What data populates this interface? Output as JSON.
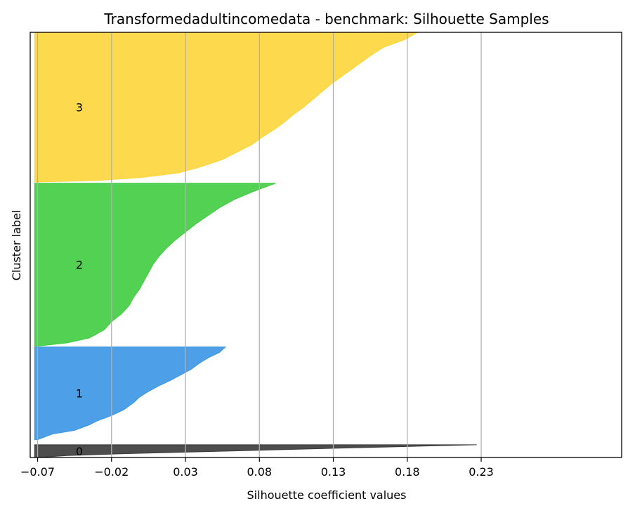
{
  "chart_data": {
    "type": "area",
    "title": "Transformedadultincomedata - benchmark: Silhouette Samples",
    "xlabel": "Silhouette coefficient values",
    "ylabel": "Cluster label",
    "xlim": [
      -0.075,
      0.325
    ],
    "x_ticks": [
      -0.07,
      -0.02,
      0.03,
      0.08,
      0.13,
      0.18,
      0.23
    ],
    "x_tick_labels": [
      "−0.07",
      "−0.02",
      "0.03",
      "0.08",
      "0.13",
      "0.18",
      "0.23"
    ],
    "ylim": [
      0,
      1000
    ],
    "grid": "x",
    "baseline": -0.072,
    "clusters": [
      {
        "label": "0",
        "color": "#3a3a3a",
        "band": [
          0,
          30
        ],
        "profile": [
          [
            0,
            -0.07
          ],
          [
            0.15,
            -0.05
          ],
          [
            0.3,
            -0.01
          ],
          [
            0.45,
            0.04
          ],
          [
            0.6,
            0.09
          ],
          [
            0.75,
            0.14
          ],
          [
            0.85,
            0.175
          ],
          [
            0.95,
            0.21
          ],
          [
            1.0,
            0.227
          ]
        ]
      },
      {
        "label": "1",
        "color": "#3a96e4",
        "band": [
          42,
          260
        ],
        "profile": [
          [
            0,
            -0.07
          ],
          [
            0.06,
            -0.06
          ],
          [
            0.1,
            -0.045
          ],
          [
            0.16,
            -0.035
          ],
          [
            0.2,
            -0.03
          ],
          [
            0.26,
            -0.02
          ],
          [
            0.32,
            -0.012
          ],
          [
            0.4,
            -0.005
          ],
          [
            0.46,
            -0.001
          ],
          [
            0.52,
            0.005
          ],
          [
            0.58,
            0.012
          ],
          [
            0.64,
            0.02
          ],
          [
            0.7,
            0.027
          ],
          [
            0.76,
            0.034
          ],
          [
            0.82,
            0.039
          ],
          [
            0.88,
            0.045
          ],
          [
            0.94,
            0.053
          ],
          [
            1.0,
            0.057
          ]
        ]
      },
      {
        "label": "2",
        "color": "#3fcc3f",
        "band": [
          262,
          645
        ],
        "profile": [
          [
            0,
            -0.07
          ],
          [
            0.02,
            -0.05
          ],
          [
            0.05,
            -0.035
          ],
          [
            0.1,
            -0.025
          ],
          [
            0.15,
            -0.02
          ],
          [
            0.2,
            -0.013
          ],
          [
            0.25,
            -0.008
          ],
          [
            0.3,
            -0.005
          ],
          [
            0.35,
            -0.001
          ],
          [
            0.4,
            0.002
          ],
          [
            0.45,
            0.005
          ],
          [
            0.5,
            0.008
          ],
          [
            0.55,
            0.012
          ],
          [
            0.6,
            0.017
          ],
          [
            0.65,
            0.023
          ],
          [
            0.7,
            0.03
          ],
          [
            0.75,
            0.037
          ],
          [
            0.8,
            0.045
          ],
          [
            0.85,
            0.053
          ],
          [
            0.9,
            0.063
          ],
          [
            0.95,
            0.076
          ],
          [
            1.0,
            0.091
          ]
        ]
      },
      {
        "label": "3",
        "color": "#fdd53a",
        "band": [
          648,
          1000
        ],
        "profile": [
          [
            0,
            -0.07
          ],
          [
            0.01,
            -0.03
          ],
          [
            0.03,
            0.0
          ],
          [
            0.06,
            0.025
          ],
          [
            0.1,
            0.04
          ],
          [
            0.15,
            0.055
          ],
          [
            0.2,
            0.065
          ],
          [
            0.25,
            0.075
          ],
          [
            0.3,
            0.082
          ],
          [
            0.35,
            0.09
          ],
          [
            0.4,
            0.097
          ],
          [
            0.45,
            0.103
          ],
          [
            0.5,
            0.11
          ],
          [
            0.55,
            0.116
          ],
          [
            0.6,
            0.122
          ],
          [
            0.65,
            0.128
          ],
          [
            0.7,
            0.135
          ],
          [
            0.75,
            0.142
          ],
          [
            0.8,
            0.149
          ],
          [
            0.85,
            0.156
          ],
          [
            0.9,
            0.164
          ],
          [
            0.95,
            0.178
          ],
          [
            1.0,
            0.187
          ]
        ]
      }
    ]
  }
}
